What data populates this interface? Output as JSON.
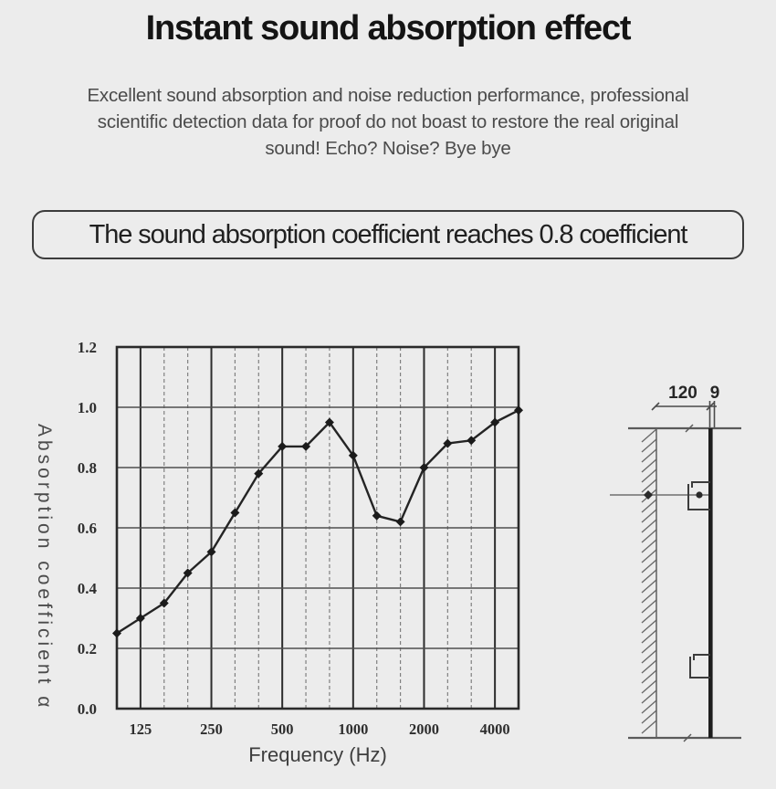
{
  "page": {
    "background": "#ececec"
  },
  "header": {
    "title": "Instant sound absorption effect",
    "subtitle_lines": [
      "Excellent sound absorption and noise reduction performance, professional",
      "scientific detection data for proof do not boast to restore the real original",
      "sound! Echo? Noise? Bye bye"
    ]
  },
  "banner": {
    "text": "The sound absorption coefficient reaches 0.8 coefficient"
  },
  "chart_data": {
    "type": "line",
    "title": "",
    "xlabel": "Frequency (Hz)",
    "ylabel": "Absorption coefficient α",
    "x_scale": "log-one-third-octave",
    "x": [
      100,
      125,
      160,
      200,
      250,
      315,
      400,
      500,
      630,
      800,
      1000,
      1250,
      1600,
      2000,
      2500,
      3150,
      4000,
      5000
    ],
    "values": [
      0.25,
      0.3,
      0.35,
      0.45,
      0.52,
      0.65,
      0.78,
      0.87,
      0.87,
      0.95,
      0.84,
      0.64,
      0.62,
      0.8,
      0.88,
      0.89,
      0.95,
      0.99
    ],
    "xtick_labels": [
      "125",
      "250",
      "500",
      "1000",
      "2000",
      "4000"
    ],
    "xtick_freqs": [
      125,
      250,
      500,
      1000,
      2000,
      4000
    ],
    "yticks": [
      0.0,
      0.2,
      0.4,
      0.6,
      0.8,
      1.0,
      1.2
    ],
    "ylim": [
      0.0,
      1.2
    ],
    "grid": true,
    "legend": "none",
    "marker": "diamond",
    "colors": {
      "line": "#242424",
      "marker": "#1b1b1b",
      "grid_major": "#2d2d2d",
      "grid_minor": "#808080",
      "grid_horizontal": "#4f4f4f",
      "border": "#2a2a2a",
      "tick_text": "#2e2e2e"
    }
  },
  "diagram": {
    "cavity_width_label": "120",
    "panel_thickness_label": "9"
  }
}
